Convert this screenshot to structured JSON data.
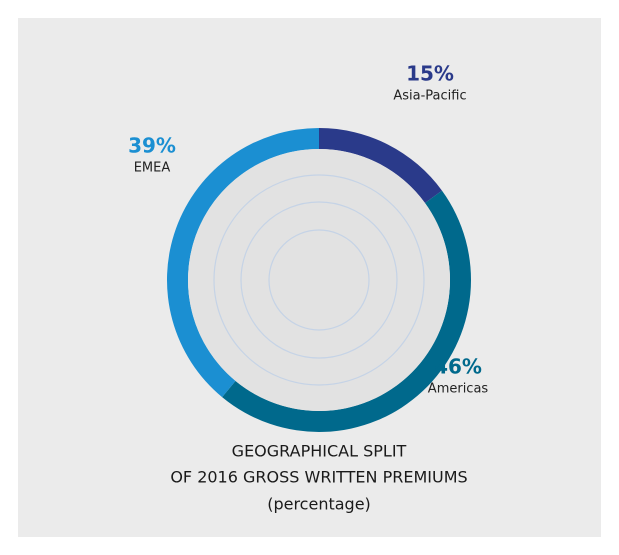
{
  "chart_data": {
    "type": "pie",
    "donut": true,
    "title": [
      "GEOGRAPHICAL SPLIT",
      "OF 2016 GROSS WRITTEN PREMIUMS"
    ],
    "subtitle": "(percentage)",
    "categories": [
      "Asia-Pacific",
      "Americas",
      "EMEA"
    ],
    "values": [
      15,
      46,
      39
    ],
    "value_labels": [
      "15%",
      "46%",
      "39%"
    ],
    "colors": [
      "#2a3a8a",
      "#00698c",
      "#1b8fd2"
    ]
  }
}
